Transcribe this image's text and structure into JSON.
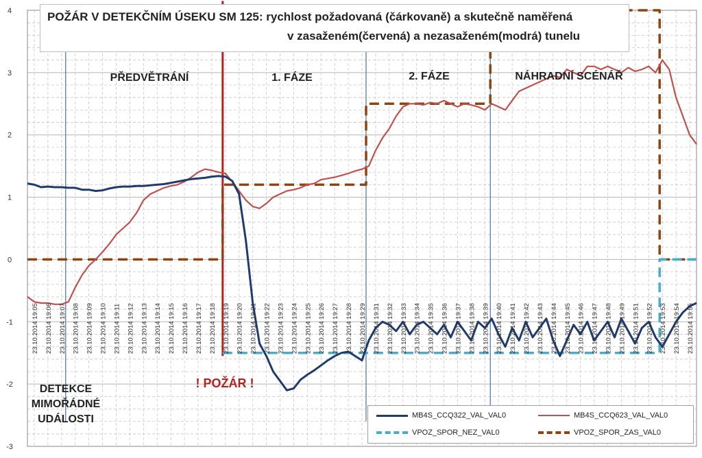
{
  "title": {
    "line1": "POŽÁR V DETEKČNÍM ÚSEKU SM 125: rychlost požadovaná (čárkovaně) a skutečně naměřená",
    "line2": "v zasaženém(červená) a nezasaženém(modrá) tunelu"
  },
  "annotations": {
    "phase_pre": "PŘEDVĚTRÁNÍ",
    "phase_1": "1. FÁZE",
    "phase_2": "2. FÁZE",
    "phase_alt": "NÁHRADNÍ SCÉNÁŘ",
    "detection": [
      "DETEKCE",
      "MIMOŘÁDNÉ",
      "UDÁLOSTI"
    ],
    "fire": "! POŽÁR !"
  },
  "chart_data": {
    "type": "line",
    "ylim": [
      -3,
      4
    ],
    "y_ticks": [
      -3,
      -2,
      -1,
      0,
      1,
      2,
      3,
      4
    ],
    "x_tick_labels": [
      "23.10.2014 19:05",
      "23.10.2014 19:06",
      "23.10.2014 19:07",
      "23.10.2014 19:08",
      "23.10.2014 19:09",
      "23.10.2014 19:10",
      "23.10.2014 19:11",
      "23.10.2014 19:12",
      "23.10.2014 19:13",
      "23.10.2014 19:14",
      "23.10.2014 19:15",
      "23.10.2014 19:16",
      "23.10.2014 19:17",
      "23.10.2014 19:18",
      "23.10.2014 19:19",
      "23.10.2014 19:20",
      "23.10.2014 19:21",
      "23.10.2014 19:22",
      "23.10.2014 19:23",
      "23.10.2014 19:24",
      "23.10.2014 19:25",
      "23.10.2014 19:26",
      "23.10.2014 19:27",
      "23.10.2014 19:28",
      "23.10.2014 19:29",
      "23.10.2014 19:31",
      "23.10.2014 19:32",
      "23.10.2014 19:33",
      "23.10.2014 19:34",
      "23.10.2014 19:35",
      "23.10.2014 19:36",
      "23.10.2014 19:37",
      "23.10.2014 19:38",
      "23.10.2014 19:39",
      "23.10.2014 19:40",
      "23.10.2014 19:41",
      "23.10.2014 19:42",
      "23.10.2014 19:43",
      "23.10.2014 19:44",
      "23.10.2014 19:45",
      "23.10.2014 19:46",
      "23.10.2014 19:47",
      "23.10.2014 19:48",
      "23.10.2014 19:49",
      "23.10.2014 19:51",
      "23.10.2014 19:52",
      "23.10.2014 19:53",
      "23.10.2014 19:54",
      "23.10.2014 19:55"
    ],
    "x_range": [
      0,
      49
    ],
    "grid": true,
    "legend_position": "bottom-right",
    "event_markers": [
      {
        "x": 2.8,
        "color": "#4a6fa0",
        "role": "detection"
      },
      {
        "x": 14.3,
        "color": "#b22222",
        "role": "fire"
      },
      {
        "x": 24.8,
        "color": "#4a6fa0",
        "role": "phase2"
      },
      {
        "x": 33.9,
        "color": "#4a6fa0",
        "role": "alt"
      }
    ],
    "series": [
      {
        "name": "MB4S_CCQ322_VAL_VAL0",
        "color": "#1f3b6e",
        "style": "solid",
        "points": [
          [
            0,
            1.22
          ],
          [
            0.5,
            1.2
          ],
          [
            1,
            1.16
          ],
          [
            1.5,
            1.17
          ],
          [
            2,
            1.16
          ],
          [
            2.5,
            1.16
          ],
          [
            3,
            1.15
          ],
          [
            3.5,
            1.15
          ],
          [
            4,
            1.12
          ],
          [
            4.5,
            1.12
          ],
          [
            5,
            1.1
          ],
          [
            5.5,
            1.11
          ],
          [
            6,
            1.14
          ],
          [
            6.5,
            1.16
          ],
          [
            7,
            1.17
          ],
          [
            7.5,
            1.17
          ],
          [
            8,
            1.18
          ],
          [
            8.5,
            1.18
          ],
          [
            9,
            1.19
          ],
          [
            9.5,
            1.2
          ],
          [
            10,
            1.21
          ],
          [
            10.5,
            1.23
          ],
          [
            11,
            1.25
          ],
          [
            11.5,
            1.27
          ],
          [
            12,
            1.29
          ],
          [
            12.5,
            1.3
          ],
          [
            13,
            1.31
          ],
          [
            13.5,
            1.33
          ],
          [
            14,
            1.34
          ],
          [
            14.5,
            1.33
          ],
          [
            15,
            1.26
          ],
          [
            15.5,
            1.05
          ],
          [
            16,
            0.3
          ],
          [
            16.5,
            -0.7
          ],
          [
            17,
            -1.35
          ],
          [
            17.5,
            -1.55
          ],
          [
            18,
            -1.8
          ],
          [
            18.5,
            -1.95
          ],
          [
            19,
            -2.1
          ],
          [
            19.5,
            -2.07
          ],
          [
            20,
            -1.93
          ],
          [
            20.5,
            -1.85
          ],
          [
            21,
            -1.78
          ],
          [
            21.5,
            -1.7
          ],
          [
            22,
            -1.62
          ],
          [
            22.5,
            -1.55
          ],
          [
            23,
            -1.5
          ],
          [
            23.5,
            -1.48
          ],
          [
            24,
            -1.55
          ],
          [
            24.5,
            -1.62
          ],
          [
            25,
            -1.3
          ],
          [
            25.5,
            -1.1
          ],
          [
            26,
            -1.0
          ],
          [
            26.5,
            -1.05
          ],
          [
            27,
            -1.15
          ],
          [
            27.5,
            -1.0
          ],
          [
            28,
            -1.2
          ],
          [
            28.5,
            -1.05
          ],
          [
            29,
            -1.0
          ],
          [
            29.5,
            -1.1
          ],
          [
            30,
            -1.2
          ],
          [
            30.5,
            -1.05
          ],
          [
            31,
            -1.25
          ],
          [
            31.5,
            -1.0
          ],
          [
            32,
            -1.15
          ],
          [
            32.5,
            -1.3
          ],
          [
            33,
            -1.0
          ],
          [
            33.5,
            -1.1
          ],
          [
            34,
            -0.95
          ],
          [
            34.5,
            -1.2
          ],
          [
            35,
            -1.4
          ],
          [
            35.5,
            -1.1
          ],
          [
            36,
            -1.3
          ],
          [
            36.5,
            -1.0
          ],
          [
            37,
            -1.25
          ],
          [
            37.5,
            -1.1
          ],
          [
            38,
            -0.95
          ],
          [
            38.5,
            -1.3
          ],
          [
            39,
            -1.55
          ],
          [
            39.5,
            -1.3
          ],
          [
            40,
            -1.05
          ],
          [
            40.5,
            -1.2
          ],
          [
            41,
            -1.0
          ],
          [
            41.5,
            -1.3
          ],
          [
            42,
            -1.15
          ],
          [
            42.5,
            -1.0
          ],
          [
            43,
            -1.25
          ],
          [
            43.5,
            -0.95
          ],
          [
            44,
            -1.15
          ],
          [
            44.5,
            -1.35
          ],
          [
            45,
            -1.1
          ],
          [
            45.5,
            -1.0
          ],
          [
            46,
            -1.25
          ],
          [
            46.5,
            -1.4
          ],
          [
            47,
            -1.2
          ],
          [
            47.5,
            -1.0
          ],
          [
            48,
            -0.85
          ],
          [
            48.5,
            -0.75
          ],
          [
            49,
            -0.7
          ]
        ]
      },
      {
        "name": "MB4S_CCQ623_VAL_VAL0",
        "color": "#c0504d",
        "style": "solid",
        "points": [
          [
            0,
            -0.6
          ],
          [
            0.5,
            -0.68
          ],
          [
            1,
            -0.7
          ],
          [
            1.5,
            -0.7
          ],
          [
            2,
            -0.72
          ],
          [
            2.5,
            -0.72
          ],
          [
            3,
            -0.68
          ],
          [
            3.5,
            -0.45
          ],
          [
            4,
            -0.25
          ],
          [
            4.5,
            -0.1
          ],
          [
            5,
            0.0
          ],
          [
            5.5,
            0.12
          ],
          [
            6,
            0.25
          ],
          [
            6.5,
            0.4
          ],
          [
            7,
            0.5
          ],
          [
            7.5,
            0.6
          ],
          [
            8,
            0.75
          ],
          [
            8.5,
            0.95
          ],
          [
            9,
            1.05
          ],
          [
            9.5,
            1.1
          ],
          [
            10,
            1.15
          ],
          [
            10.5,
            1.18
          ],
          [
            11,
            1.2
          ],
          [
            11.5,
            1.25
          ],
          [
            12,
            1.32
          ],
          [
            12.5,
            1.4
          ],
          [
            13,
            1.45
          ],
          [
            13.5,
            1.43
          ],
          [
            14,
            1.4
          ],
          [
            14.5,
            1.38
          ],
          [
            15,
            1.25
          ],
          [
            15.5,
            1.1
          ],
          [
            16,
            0.95
          ],
          [
            16.5,
            0.85
          ],
          [
            17,
            0.82
          ],
          [
            17.5,
            0.9
          ],
          [
            18,
            1.0
          ],
          [
            18.5,
            1.05
          ],
          [
            19,
            1.1
          ],
          [
            19.5,
            1.12
          ],
          [
            20,
            1.15
          ],
          [
            20.5,
            1.2
          ],
          [
            21,
            1.22
          ],
          [
            21.5,
            1.28
          ],
          [
            22,
            1.3
          ],
          [
            22.5,
            1.32
          ],
          [
            23,
            1.35
          ],
          [
            23.5,
            1.38
          ],
          [
            24,
            1.42
          ],
          [
            24.5,
            1.45
          ],
          [
            25,
            1.5
          ],
          [
            25.5,
            1.75
          ],
          [
            26,
            1.95
          ],
          [
            26.5,
            2.1
          ],
          [
            27,
            2.3
          ],
          [
            27.5,
            2.45
          ],
          [
            28,
            2.5
          ],
          [
            28.5,
            2.5
          ],
          [
            29,
            2.48
          ],
          [
            29.5,
            2.52
          ],
          [
            30,
            2.5
          ],
          [
            30.5,
            2.55
          ],
          [
            31,
            2.5
          ],
          [
            31.5,
            2.45
          ],
          [
            32,
            2.5
          ],
          [
            32.5,
            2.48
          ],
          [
            33,
            2.45
          ],
          [
            33.5,
            2.4
          ],
          [
            34,
            2.5
          ],
          [
            34.5,
            2.45
          ],
          [
            35,
            2.4
          ],
          [
            35.5,
            2.55
          ],
          [
            36,
            2.7
          ],
          [
            36.5,
            2.75
          ],
          [
            37,
            2.8
          ],
          [
            37.5,
            2.85
          ],
          [
            38,
            2.9
          ],
          [
            38.5,
            2.95
          ],
          [
            39,
            2.92
          ],
          [
            39.5,
            3.05
          ],
          [
            40,
            3.0
          ],
          [
            40.5,
            2.95
          ],
          [
            41,
            3.1
          ],
          [
            41.5,
            3.1
          ],
          [
            42,
            3.05
          ],
          [
            42.5,
            3.1
          ],
          [
            43,
            3.05
          ],
          [
            43.5,
            3.0
          ],
          [
            44,
            3.08
          ],
          [
            44.5,
            3.02
          ],
          [
            45,
            3.05
          ],
          [
            45.5,
            3.1
          ],
          [
            46,
            3.0
          ],
          [
            46.5,
            3.2
          ],
          [
            47,
            3.05
          ],
          [
            47.5,
            2.6
          ],
          [
            48,
            2.3
          ],
          [
            48.5,
            2.0
          ],
          [
            49,
            1.85
          ]
        ]
      },
      {
        "name": "VPOZ_SPOR_NEZ_VAL0",
        "color": "#4bacc6",
        "style": "dashed",
        "points": [
          [
            14.3,
            -1.5
          ],
          [
            46.3,
            -1.5
          ],
          [
            46.3,
            0.0
          ],
          [
            49,
            0.0
          ]
        ]
      },
      {
        "name": "VPOZ_SPOR_ZAS_VAL0",
        "color": "#8b4513",
        "style": "dashed",
        "points": [
          [
            0,
            0.0
          ],
          [
            14.3,
            0.0
          ],
          [
            14.3,
            1.2
          ],
          [
            24.8,
            1.2
          ],
          [
            24.8,
            2.5
          ],
          [
            33.9,
            2.5
          ],
          [
            33.9,
            4.0
          ],
          [
            46.3,
            4.0
          ],
          [
            46.3,
            0.0
          ],
          [
            49,
            0.0
          ]
        ]
      }
    ]
  },
  "colors": {
    "grid": "#c8c8c8",
    "axis": "#888888"
  }
}
